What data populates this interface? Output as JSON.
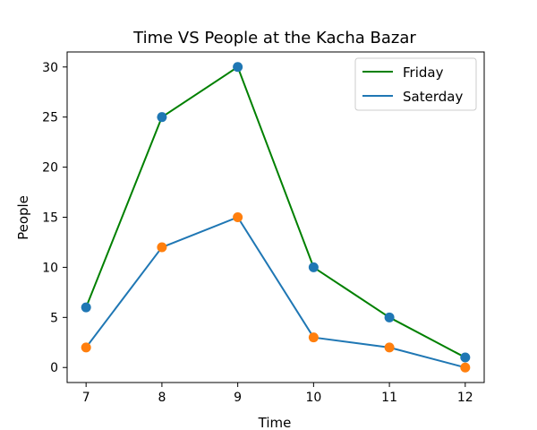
{
  "chart_data": {
    "type": "line",
    "title": "Time VS People at the Kacha Bazar",
    "xlabel": "Time",
    "ylabel": "People",
    "x": [
      7,
      8,
      9,
      10,
      11,
      12
    ],
    "xticks": [
      "7",
      "8",
      "9",
      "10",
      "11",
      "12"
    ],
    "yticks": [
      "0",
      "5",
      "10",
      "15",
      "20",
      "25",
      "30"
    ],
    "xlim": [
      6.75,
      12.25
    ],
    "ylim": [
      -1.5,
      31.5
    ],
    "grid": false,
    "legend_position": "top-right",
    "series": [
      {
        "name": "Friday",
        "values": [
          6,
          25,
          30,
          10,
          5,
          1
        ],
        "line_color": "#008000",
        "marker_color": "#1f77b4"
      },
      {
        "name": "Saterday",
        "values": [
          2,
          12,
          15,
          3,
          2,
          0
        ],
        "line_color": "#1f77b4",
        "marker_color": "#ff7f0e"
      }
    ]
  }
}
